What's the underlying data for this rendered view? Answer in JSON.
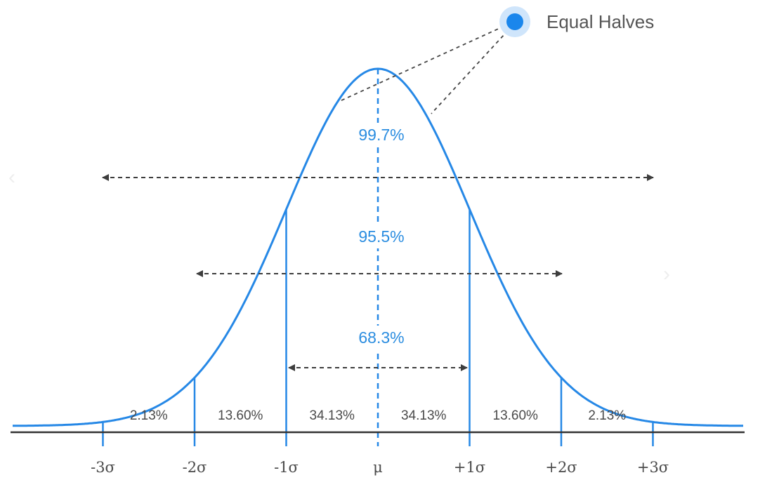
{
  "colors": {
    "curve": "#2688e6",
    "axis": "#333333",
    "arrow": "#3d3d3d",
    "callout_dot": "#1a86ec",
    "callout_halo": "#cfe5fb"
  },
  "callout": {
    "label": "Equal Halves"
  },
  "coverage": {
    "one_sigma": "68.3%",
    "two_sigma": "95.5%",
    "three_sigma": "99.7%"
  },
  "regions": [
    {
      "label": "2.13%"
    },
    {
      "label": "13.60%"
    },
    {
      "label": "34.13%"
    },
    {
      "label": "34.13%"
    },
    {
      "label": "13.60%"
    },
    {
      "label": "2.13%"
    }
  ],
  "axis_ticks": [
    {
      "label": "-3σ"
    },
    {
      "label": "-2σ"
    },
    {
      "label": "-1σ"
    },
    {
      "label": "μ"
    },
    {
      "label": "+1σ"
    },
    {
      "label": "+2σ"
    },
    {
      "label": "+3σ"
    }
  ]
}
